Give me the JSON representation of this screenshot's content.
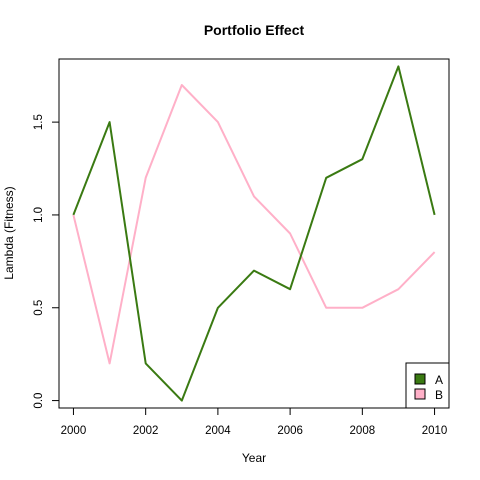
{
  "chart_data": {
    "type": "line",
    "title": "Portfolio Effect",
    "xlabel": "Year",
    "ylabel": "Lambda (Fitness)",
    "x": [
      2000,
      2001,
      2002,
      2003,
      2004,
      2005,
      2006,
      2007,
      2008,
      2009,
      2010
    ],
    "xticks": [
      2000,
      2002,
      2004,
      2006,
      2008,
      2010
    ],
    "xtick_labels": [
      "2000",
      "2002",
      "2004",
      "2006",
      "2008",
      "2010"
    ],
    "yticks": [
      0.0,
      0.5,
      1.0,
      1.5
    ],
    "ytick_labels": [
      "0.0",
      "0.5",
      "1.0",
      "1.5"
    ],
    "xlim": [
      1999.6,
      2010.4
    ],
    "ylim": [
      -0.04,
      1.84
    ],
    "grid": false,
    "legend_position": "bottom-right",
    "series": [
      {
        "name": "A",
        "color": "#3a7a12",
        "values": [
          1.0,
          1.5,
          0.2,
          0.0,
          0.5,
          0.7,
          0.6,
          1.2,
          1.3,
          1.8,
          1.0
        ]
      },
      {
        "name": "B",
        "color": "#ffb0c8",
        "values": [
          1.0,
          0.2,
          1.2,
          1.7,
          1.5,
          1.1,
          0.9,
          0.5,
          0.5,
          0.6,
          0.8
        ]
      }
    ]
  }
}
